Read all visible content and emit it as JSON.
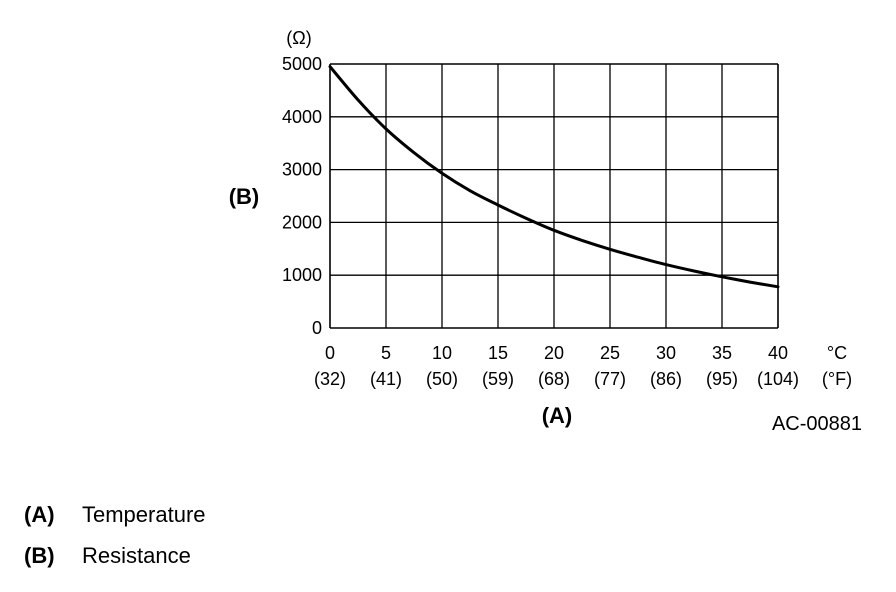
{
  "chart_data": {
    "type": "line",
    "xlabel": "(A)",
    "ylabel": "(B)",
    "y_unit": "(Ω)",
    "x_unit_c": "°C",
    "x_unit_f": "(°F)",
    "x_ticks_c": [
      "0",
      "5",
      "10",
      "15",
      "20",
      "25",
      "30",
      "35",
      "40"
    ],
    "x_ticks_f": [
      "(32)",
      "(41)",
      "(50)",
      "(59)",
      "(68)",
      "(77)",
      "(86)",
      "(95)",
      "(104)"
    ],
    "y_ticks": [
      "0",
      "1000",
      "2000",
      "3000",
      "4000",
      "5000"
    ],
    "xlim": [
      0,
      40
    ],
    "ylim": [
      0,
      5000
    ],
    "grid": true,
    "series": [
      {
        "x": [
          0,
          2.5,
          5,
          7.5,
          10,
          12.5,
          15,
          17.5,
          20,
          22.5,
          25,
          27.5,
          30,
          32.5,
          35,
          37.5,
          40
        ],
        "values": [
          4950,
          4320,
          3770,
          3320,
          2930,
          2600,
          2330,
          2080,
          1850,
          1660,
          1490,
          1340,
          1200,
          1080,
          970,
          870,
          780
        ]
      }
    ]
  },
  "figure_id": "AC-00881",
  "legend": [
    {
      "key": "(A)",
      "label": "Temperature"
    },
    {
      "key": "(B)",
      "label": "Resistance"
    }
  ]
}
